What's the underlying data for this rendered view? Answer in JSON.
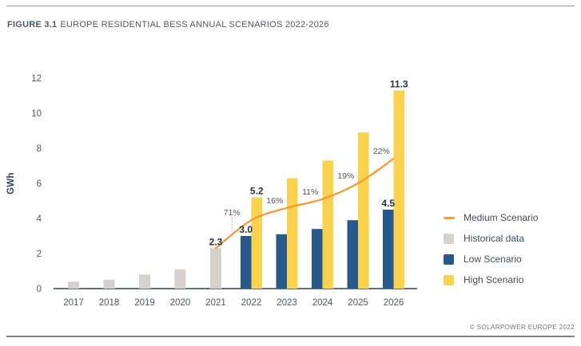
{
  "figure": {
    "label": "FIGURE 3.1",
    "title": "EUROPE RESIDENTIAL BESS ANNUAL SCENARIOS 2022-2026",
    "copyright": "© SOLARPOWER EUROPE 2022"
  },
  "colors": {
    "historical_grey": "#D6D1CC",
    "low_blue": "#29588A",
    "high_yellow": "#FBD24D",
    "medium_orange": "#F49A33",
    "axis": "#5E7284",
    "text_slate": "#4E5964",
    "text_dark": "#27313C"
  },
  "chart_data": {
    "type": "bar",
    "title": "EUROPE RESIDENTIAL BESS ANNUAL SCENARIOS 2022-2026",
    "xlabel": "",
    "ylabel": "GWh",
    "ylim": [
      0,
      12
    ],
    "ytick_step": 2,
    "grid": false,
    "legend_position": "right",
    "categories": [
      "2017",
      "2018",
      "2019",
      "2020",
      "2021",
      "2022",
      "2023",
      "2024",
      "2025",
      "2026"
    ],
    "series": [
      {
        "name": "Historical data",
        "type": "bar",
        "color": "#D6D1CC",
        "values": [
          0.4,
          0.5,
          0.8,
          1.1,
          2.3,
          null,
          null,
          null,
          null,
          null
        ]
      },
      {
        "name": "Low Scenario",
        "type": "bar",
        "color": "#29588A",
        "values": [
          null,
          null,
          null,
          null,
          null,
          3.0,
          3.1,
          3.4,
          3.9,
          4.5
        ]
      },
      {
        "name": "High Scenario",
        "type": "bar",
        "color": "#FBD24D",
        "values": [
          null,
          null,
          null,
          null,
          null,
          5.2,
          6.3,
          7.3,
          8.9,
          11.3
        ]
      },
      {
        "name": "Medium Scenario",
        "type": "line",
        "color": "#F49A33",
        "values": [
          null,
          null,
          null,
          null,
          2.3,
          3.9,
          4.6,
          5.1,
          6.0,
          7.4
        ]
      }
    ],
    "point_labels": [
      {
        "series": "Historical data",
        "category": "2021",
        "text": "2.3"
      },
      {
        "series": "Low Scenario",
        "category": "2022",
        "text": "3.0"
      },
      {
        "series": "High Scenario",
        "category": "2022",
        "text": "5.2"
      },
      {
        "series": "Low Scenario",
        "category": "2026",
        "text": "4.5"
      },
      {
        "series": "High Scenario",
        "category": "2026",
        "text": "11.3"
      }
    ],
    "growth_labels": [
      {
        "text": "71%",
        "between": [
          "2021",
          "2022"
        ],
        "dashed_connector": true
      },
      {
        "text": "16%",
        "between": [
          "2022",
          "2023"
        ],
        "dashed_connector": false
      },
      {
        "text": "11%",
        "between": [
          "2023",
          "2024"
        ],
        "dashed_connector": false
      },
      {
        "text": "19%",
        "between": [
          "2024",
          "2025"
        ],
        "dashed_connector": false
      },
      {
        "text": "22%",
        "between": [
          "2025",
          "2026"
        ],
        "dashed_connector": false
      }
    ]
  },
  "legend": {
    "items": [
      {
        "label": "Medium Scenario",
        "swatch": "line",
        "color": "#F49A33"
      },
      {
        "label": "Historical data",
        "swatch": "square",
        "color": "#D6D1CC"
      },
      {
        "label": "Low Scenario",
        "swatch": "square",
        "color": "#29588A"
      },
      {
        "label": "High Scenario",
        "swatch": "square",
        "color": "#FBD24D"
      }
    ]
  }
}
